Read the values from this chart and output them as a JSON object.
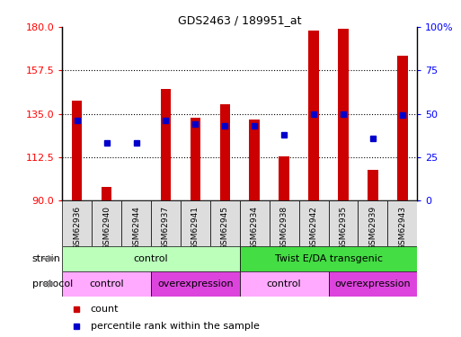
{
  "title": "GDS2463 / 189951_at",
  "samples": [
    "GSM62936",
    "GSM62940",
    "GSM62944",
    "GSM62937",
    "GSM62941",
    "GSM62945",
    "GSM62934",
    "GSM62938",
    "GSM62942",
    "GSM62935",
    "GSM62939",
    "GSM62943"
  ],
  "counts": [
    142,
    97,
    90,
    148,
    133,
    140,
    132,
    113,
    178,
    179,
    106,
    165
  ],
  "percentiles": [
    46,
    33,
    33,
    46,
    44,
    43,
    43,
    38,
    50,
    50,
    36,
    49
  ],
  "ylim_left": [
    90,
    180
  ],
  "yticks_left": [
    90,
    112.5,
    135,
    157.5,
    180
  ],
  "yticks_right": [
    0,
    25,
    50,
    75,
    100
  ],
  "bar_color": "#cc0000",
  "dot_color": "#0000cc",
  "bar_width": 0.35,
  "strain_groups": [
    {
      "label": "control",
      "start": 0,
      "end": 6,
      "color": "#bbffbb"
    },
    {
      "label": "Twist E/DA transgenic",
      "start": 6,
      "end": 12,
      "color": "#44dd44"
    }
  ],
  "protocol_groups": [
    {
      "label": "control",
      "start": 0,
      "end": 3,
      "color": "#ffaaff"
    },
    {
      "label": "overexpression",
      "start": 3,
      "end": 6,
      "color": "#dd44dd"
    },
    {
      "label": "control",
      "start": 6,
      "end": 9,
      "color": "#ffaaff"
    },
    {
      "label": "overexpression",
      "start": 9,
      "end": 12,
      "color": "#dd44dd"
    }
  ],
  "strain_label": "strain",
  "protocol_label": "protocol",
  "legend_count_label": "count",
  "legend_pct_label": "percentile rank within the sample",
  "plot_bg": "#ffffff",
  "fig_bg": "#ffffff"
}
